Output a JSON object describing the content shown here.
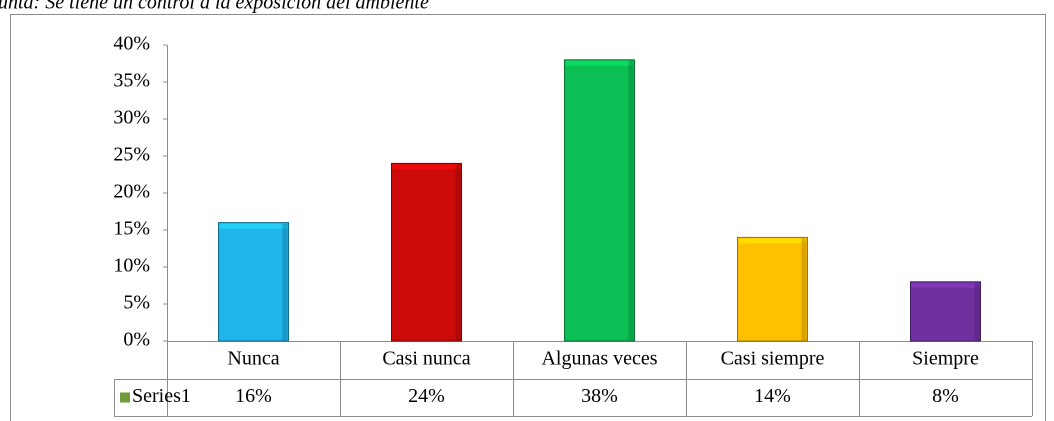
{
  "chart_data": {
    "type": "bar",
    "title": "unta: Se tiene un control a la exposición del ambiente",
    "categories": [
      "Nunca",
      "Casi nunca",
      "Algunas veces",
      "Casi siempre",
      "Siempre"
    ],
    "series": [
      {
        "name": "Series1",
        "color": "#6e9a3c",
        "colors": [
          "#1fb4ea",
          "#cc0a0a",
          "#0bbf55",
          "#ffc000",
          "#7030a0"
        ],
        "values": [
          16,
          24,
          38,
          14,
          8
        ],
        "value_labels": [
          "16%",
          "24%",
          "38%",
          "14%",
          "8%"
        ]
      }
    ],
    "ylim": [
      0,
      40
    ],
    "yticks": [
      {
        "value": 0,
        "label": "0%"
      },
      {
        "value": 5,
        "label": "5%"
      },
      {
        "value": 10,
        "label": "10%"
      },
      {
        "value": 15,
        "label": "15%"
      },
      {
        "value": 20,
        "label": "20%"
      },
      {
        "value": 25,
        "label": "25%"
      },
      {
        "value": 30,
        "label": "30%"
      },
      {
        "value": 35,
        "label": "35%"
      },
      {
        "value": 40,
        "label": "40%"
      }
    ],
    "grid": false
  }
}
